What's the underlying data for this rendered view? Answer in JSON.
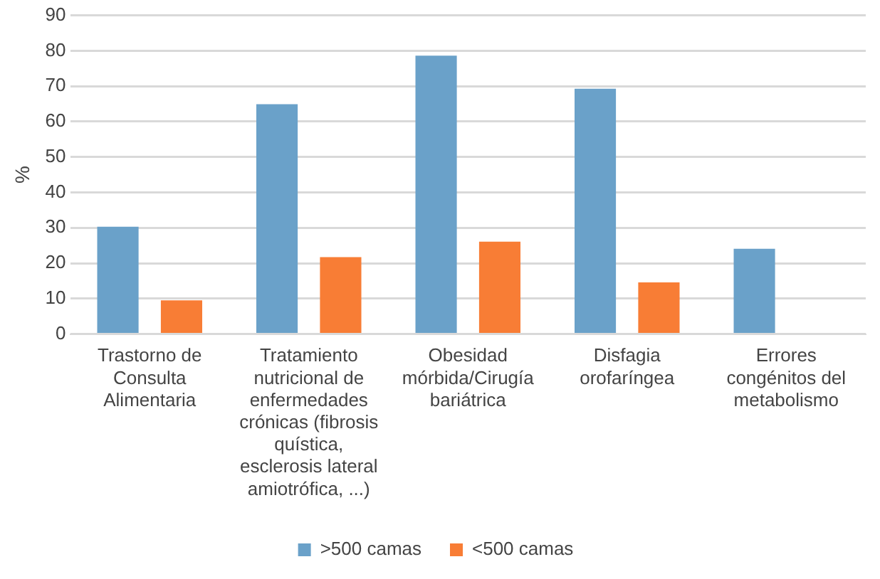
{
  "chart_data": {
    "type": "bar",
    "ylabel": "%",
    "categories": [
      "Trastorno de Consulta Alimentaria",
      "Tratamiento nutricional de enfermedades crónicas (fibrosis quística, esclerosis lateral amiotrófica, ...)",
      "Obesidad mórbida/Cirugía bariátrica",
      "Disfagia orofaríngea",
      "Errores congénitos del metabolismo"
    ],
    "series": [
      {
        "name": ">500 camas",
        "color": "#6aa1c9",
        "values": [
          30.3,
          64.9,
          78.6,
          69.3,
          24.1
        ]
      },
      {
        "name": "<500 camas",
        "color": "#f87d35",
        "values": [
          9.5,
          21.7,
          26.1,
          14.6,
          null
        ]
      }
    ],
    "ylim": [
      0,
      90
    ],
    "yticks": [
      0,
      10,
      20,
      30,
      40,
      50,
      60,
      70,
      80,
      90
    ],
    "grid": "y",
    "legend": "bottom"
  }
}
